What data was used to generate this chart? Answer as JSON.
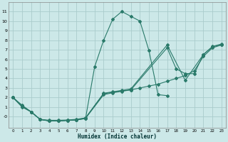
{
  "xlabel": "Humidex (Indice chaleur)",
  "bg_color": "#cce8e8",
  "grid_color": "#aacccc",
  "line_color": "#2a7a6a",
  "xlim": [
    -0.5,
    23.5
  ],
  "ylim": [
    -1.2,
    12.0
  ],
  "xtick_vals": [
    0,
    1,
    2,
    3,
    4,
    5,
    6,
    7,
    8,
    9,
    10,
    11,
    12,
    13,
    14,
    15,
    16,
    17,
    18,
    19,
    20,
    21,
    22,
    23
  ],
  "ytick_vals": [
    0,
    1,
    2,
    3,
    4,
    5,
    6,
    7,
    8,
    9,
    10,
    11
  ],
  "ytick_labels": [
    "-0",
    "1",
    "2",
    "3",
    "4",
    "5",
    "6",
    "7",
    "8",
    "9",
    "10",
    "11"
  ],
  "series": [
    {
      "x": [
        0,
        1,
        2,
        3,
        4,
        5,
        6,
        7,
        8,
        9,
        10,
        11,
        12,
        13,
        14,
        15,
        16,
        17
      ],
      "y": [
        2.0,
        1.0,
        0.5,
        -0.3,
        -0.45,
        -0.45,
        -0.4,
        -0.35,
        -0.2,
        5.2,
        8.0,
        10.2,
        11.0,
        10.5,
        10.0,
        6.9,
        2.3,
        2.2
      ]
    },
    {
      "x": [
        0,
        1,
        2,
        3,
        4,
        5,
        6,
        7,
        8,
        10,
        11,
        12,
        13,
        14,
        15,
        16,
        17,
        18,
        19,
        20,
        21,
        22,
        23
      ],
      "y": [
        2.0,
        1.2,
        0.5,
        -0.3,
        -0.45,
        -0.45,
        -0.4,
        -0.35,
        -0.18,
        2.3,
        2.5,
        2.65,
        2.8,
        3.0,
        3.2,
        3.4,
        3.7,
        4.0,
        4.3,
        4.8,
        6.3,
        7.2,
        7.5
      ]
    },
    {
      "x": [
        0,
        1,
        2,
        3,
        4,
        5,
        6,
        7,
        8,
        10,
        11,
        12,
        13,
        17,
        18,
        19,
        20,
        21,
        22,
        23
      ],
      "y": [
        2.0,
        1.1,
        0.5,
        -0.3,
        -0.42,
        -0.42,
        -0.38,
        -0.32,
        -0.15,
        2.4,
        2.55,
        2.7,
        2.8,
        7.2,
        5.0,
        4.5,
        4.5,
        6.5,
        7.3,
        7.55
      ]
    },
    {
      "x": [
        0,
        1,
        2,
        3,
        4,
        5,
        6,
        7,
        8,
        10,
        11,
        12,
        13,
        17,
        19,
        21,
        22,
        23
      ],
      "y": [
        2.0,
        1.1,
        0.5,
        -0.28,
        -0.38,
        -0.38,
        -0.35,
        -0.28,
        -0.12,
        2.45,
        2.6,
        2.75,
        2.9,
        7.5,
        3.8,
        6.5,
        7.35,
        7.6
      ]
    }
  ]
}
